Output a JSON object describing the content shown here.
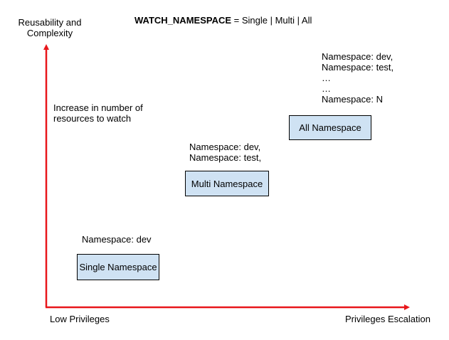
{
  "title": {
    "key": "WATCH_NAMESPACE",
    "value": " = Single | Multi | All"
  },
  "axes": {
    "y_label_line1": "Reusability and",
    "y_label_line2": "Complexity",
    "x_label_left": "Low Privileges",
    "x_label_right": "Privileges Escalation",
    "color": "#e8171b"
  },
  "annotation": {
    "line1": "Increase in number of",
    "line2": "resources to watch"
  },
  "levels": {
    "single": {
      "box_label": "Single Namespace",
      "namespaces": [
        "Namespace: dev"
      ]
    },
    "multi": {
      "box_label": "Multi Namespace",
      "namespaces": [
        "Namespace: dev,",
        "Namespace: test,"
      ]
    },
    "all": {
      "box_label": "All Namespace",
      "namespaces": [
        "Namespace: dev,",
        "Namespace: test,",
        "…",
        "…",
        "Namespace: N"
      ]
    }
  },
  "colors": {
    "box_fill": "#cfe2f3",
    "box_border": "#000000"
  }
}
